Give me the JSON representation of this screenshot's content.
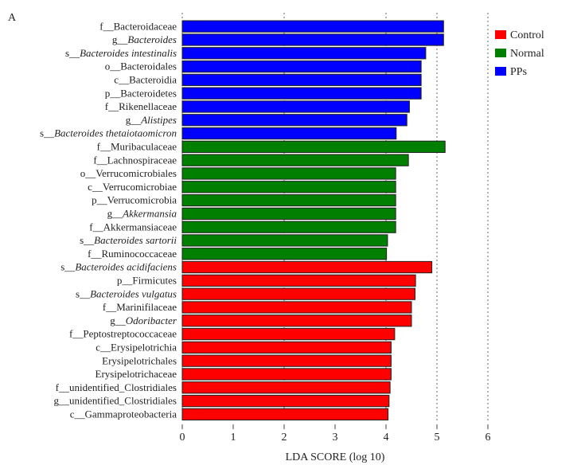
{
  "panel_label": "A",
  "chart_data": {
    "type": "bar",
    "orientation": "horizontal",
    "xlabel": "LDA SCORE (log 10)",
    "xlim": [
      0,
      6
    ],
    "xticks": [
      "0",
      "1",
      "2",
      "3",
      "4",
      "5",
      "6"
    ],
    "grid": "vertical dotted at 0, 2, 4, 5, 6",
    "legend_position": "right",
    "legend": [
      {
        "name": "Control",
        "color": "#ff0000"
      },
      {
        "name": "Normal",
        "color": "#007f00"
      },
      {
        "name": "PPs",
        "color": "#0000ff"
      }
    ],
    "bars": [
      {
        "prefix": "f__",
        "name": "Bacteroidaceae",
        "italic": false,
        "group": "PPs",
        "value": 5.13
      },
      {
        "prefix": "g__",
        "name": "Bacteroides",
        "italic": true,
        "group": "PPs",
        "value": 5.13
      },
      {
        "prefix": "s__",
        "name": "Bacteroides intestinalis",
        "italic": true,
        "group": "PPs",
        "value": 4.78
      },
      {
        "prefix": "o__",
        "name": "Bacteroidales",
        "italic": false,
        "group": "PPs",
        "value": 4.69
      },
      {
        "prefix": "c__",
        "name": "Bacteroidia",
        "italic": false,
        "group": "PPs",
        "value": 4.69
      },
      {
        "prefix": "p__",
        "name": "Bacteroidetes",
        "italic": false,
        "group": "PPs",
        "value": 4.69
      },
      {
        "prefix": "f__",
        "name": "Rikenellaceae",
        "italic": false,
        "group": "PPs",
        "value": 4.46
      },
      {
        "prefix": "g__",
        "name": "Alistipes",
        "italic": true,
        "group": "PPs",
        "value": 4.41
      },
      {
        "prefix": "s__",
        "name": "Bacteroides thetaiotaomicron",
        "italic": true,
        "group": "PPs",
        "value": 4.2
      },
      {
        "prefix": "f__",
        "name": "Muribaculaceae",
        "italic": false,
        "group": "Normal",
        "value": 5.16
      },
      {
        "prefix": "f__",
        "name": "Lachnospiraceae",
        "italic": false,
        "group": "Normal",
        "value": 4.44
      },
      {
        "prefix": "o__",
        "name": "Verrucomicrobiales",
        "italic": false,
        "group": "Normal",
        "value": 4.19
      },
      {
        "prefix": "c__",
        "name": "Verrucomicrobiae",
        "italic": false,
        "group": "Normal",
        "value": 4.19
      },
      {
        "prefix": "p__",
        "name": "Verrucomicrobia",
        "italic": false,
        "group": "Normal",
        "value": 4.19
      },
      {
        "prefix": "g__",
        "name": "Akkermansia",
        "italic": true,
        "group": "Normal",
        "value": 4.19
      },
      {
        "prefix": "f__",
        "name": "Akkermansiaceae",
        "italic": false,
        "group": "Normal",
        "value": 4.19
      },
      {
        "prefix": "s__",
        "name": "Bacteroides sartorii",
        "italic": true,
        "group": "Normal",
        "value": 4.03
      },
      {
        "prefix": "f__",
        "name": "Ruminococcaceae",
        "italic": false,
        "group": "Normal",
        "value": 4.01
      },
      {
        "prefix": "s__",
        "name": "Bacteroides acidifaciens",
        "italic": true,
        "group": "Control",
        "value": 4.9
      },
      {
        "prefix": "p__",
        "name": "Firmicutes",
        "italic": false,
        "group": "Control",
        "value": 4.58
      },
      {
        "prefix": "s__",
        "name": "Bacteroides vulgatus",
        "italic": true,
        "group": "Control",
        "value": 4.57
      },
      {
        "prefix": "f__",
        "name": "Marinifilaceae",
        "italic": false,
        "group": "Control",
        "value": 4.5
      },
      {
        "prefix": "g__",
        "name": "Odoribacter",
        "italic": true,
        "group": "Control",
        "value": 4.5
      },
      {
        "prefix": "f__",
        "name": "Peptostreptococcaceae",
        "italic": false,
        "group": "Control",
        "value": 4.17
      },
      {
        "prefix": "c__",
        "name": "Erysipelotrichia",
        "italic": false,
        "group": "Control",
        "value": 4.1
      },
      {
        "prefix": "",
        "name": "Erysipelotrichales",
        "italic": false,
        "group": "Control",
        "value": 4.1
      },
      {
        "prefix": "",
        "name": "Erysipelotrichaceae",
        "italic": false,
        "group": "Control",
        "value": 4.1
      },
      {
        "prefix": "f__",
        "name": "unidentified_Clostridiales",
        "italic": false,
        "group": "Control",
        "value": 4.08
      },
      {
        "prefix": "g__",
        "name": "unidentified_Clostridiales",
        "italic": false,
        "group": "Control",
        "value": 4.06
      },
      {
        "prefix": "c__",
        "name": "Gammaproteobacteria",
        "italic": false,
        "group": "Control",
        "value": 4.04
      }
    ]
  }
}
